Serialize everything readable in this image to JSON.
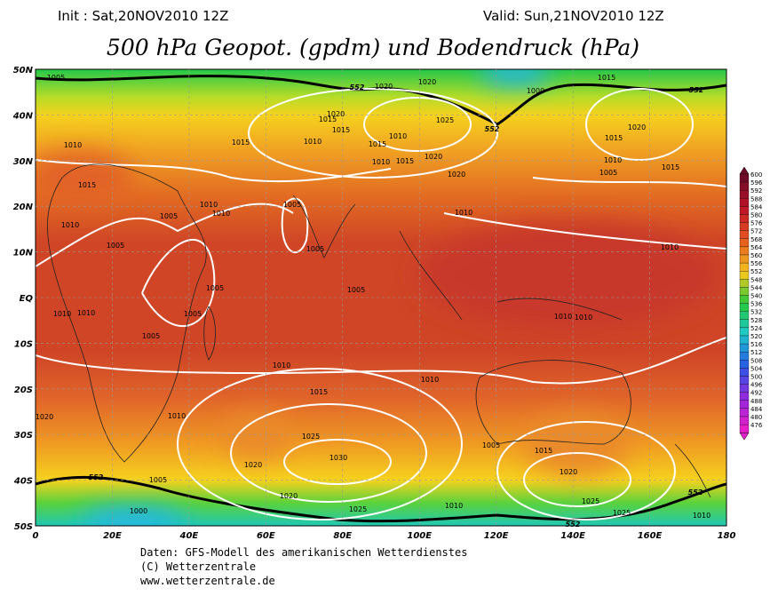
{
  "header": {
    "init": "Init : Sat,20NOV2010 12Z",
    "valid": "Valid: Sun,21NOV2010 12Z",
    "title": "500 hPa Geopot. (gpdm) und Bodendruck (hPa)"
  },
  "map": {
    "lat_labels": [
      "50N",
      "40N",
      "30N",
      "20N",
      "10N",
      "EQ",
      "10S",
      "20S",
      "30S",
      "40S",
      "50S"
    ],
    "lon_labels": [
      "0",
      "20E",
      "40E",
      "60E",
      "80E",
      "100E",
      "120E",
      "140E",
      "160E",
      "180"
    ],
    "isobar_labels": [
      "1005",
      "1020",
      "1020",
      "1000",
      "1015",
      "1020",
      "1015",
      "1025",
      "1015",
      "1010",
      "1015",
      "1010",
      "1015",
      "1010",
      "1020",
      "1015",
      "1010",
      "1015",
      "1020",
      "1020",
      "1010",
      "1015",
      "1005",
      "1015",
      "1010",
      "1010",
      "1005",
      "1005",
      "1010",
      "1010",
      "1005",
      "1005",
      "1010",
      "1005",
      "1005",
      "1005",
      "1010",
      "1010",
      "1010",
      "1010",
      "1005",
      "1010",
      "1010",
      "1015",
      "1010",
      "1025",
      "1030",
      "1020",
      "1005",
      "1020",
      "1025",
      "1020",
      "1025",
      "1000",
      "1010",
      "1005",
      "1025",
      "1020",
      "1010",
      "1015"
    ],
    "contour_labels": [
      "552",
      "552",
      "552",
      "552",
      "552",
      "552"
    ]
  },
  "colorbar": {
    "labels": [
      600,
      596,
      592,
      588,
      584,
      580,
      576,
      572,
      568,
      564,
      560,
      556,
      552,
      548,
      544,
      540,
      536,
      532,
      528,
      524,
      520,
      516,
      512,
      508,
      504,
      500,
      496,
      492,
      488,
      484,
      480,
      476
    ]
  },
  "footer": {
    "lines": [
      "Daten: GFS-Modell des amerikanischen Wetterdienstes",
      "(C) Wetterzentrale",
      "www.wetterzentrale.de"
    ]
  }
}
